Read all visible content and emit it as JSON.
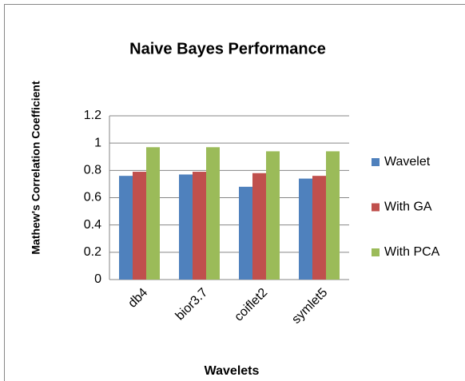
{
  "chart_data": {
    "type": "bar",
    "title": "Naive Bayes Performance",
    "x_label": "Wavelets",
    "y_label": "Mathew's Correlation Coefficient",
    "categories": [
      "db4",
      "bior3.7",
      "coiflet2",
      "symlet5"
    ],
    "series": [
      {
        "name": "Wavelet",
        "color": "#4f81bd",
        "values": [
          0.76,
          0.77,
          0.68,
          0.74
        ]
      },
      {
        "name": "With GA",
        "color": "#c0504d",
        "values": [
          0.79,
          0.79,
          0.78,
          0.76
        ]
      },
      {
        "name": "With PCA",
        "color": "#9bbb59",
        "values": [
          0.97,
          0.97,
          0.94,
          0.94
        ]
      }
    ],
    "ylim": [
      0,
      1.2
    ],
    "yticks": [
      0,
      0.2,
      0.4,
      0.6,
      0.8,
      1,
      1.2
    ],
    "grid": true,
    "legend": "right"
  }
}
